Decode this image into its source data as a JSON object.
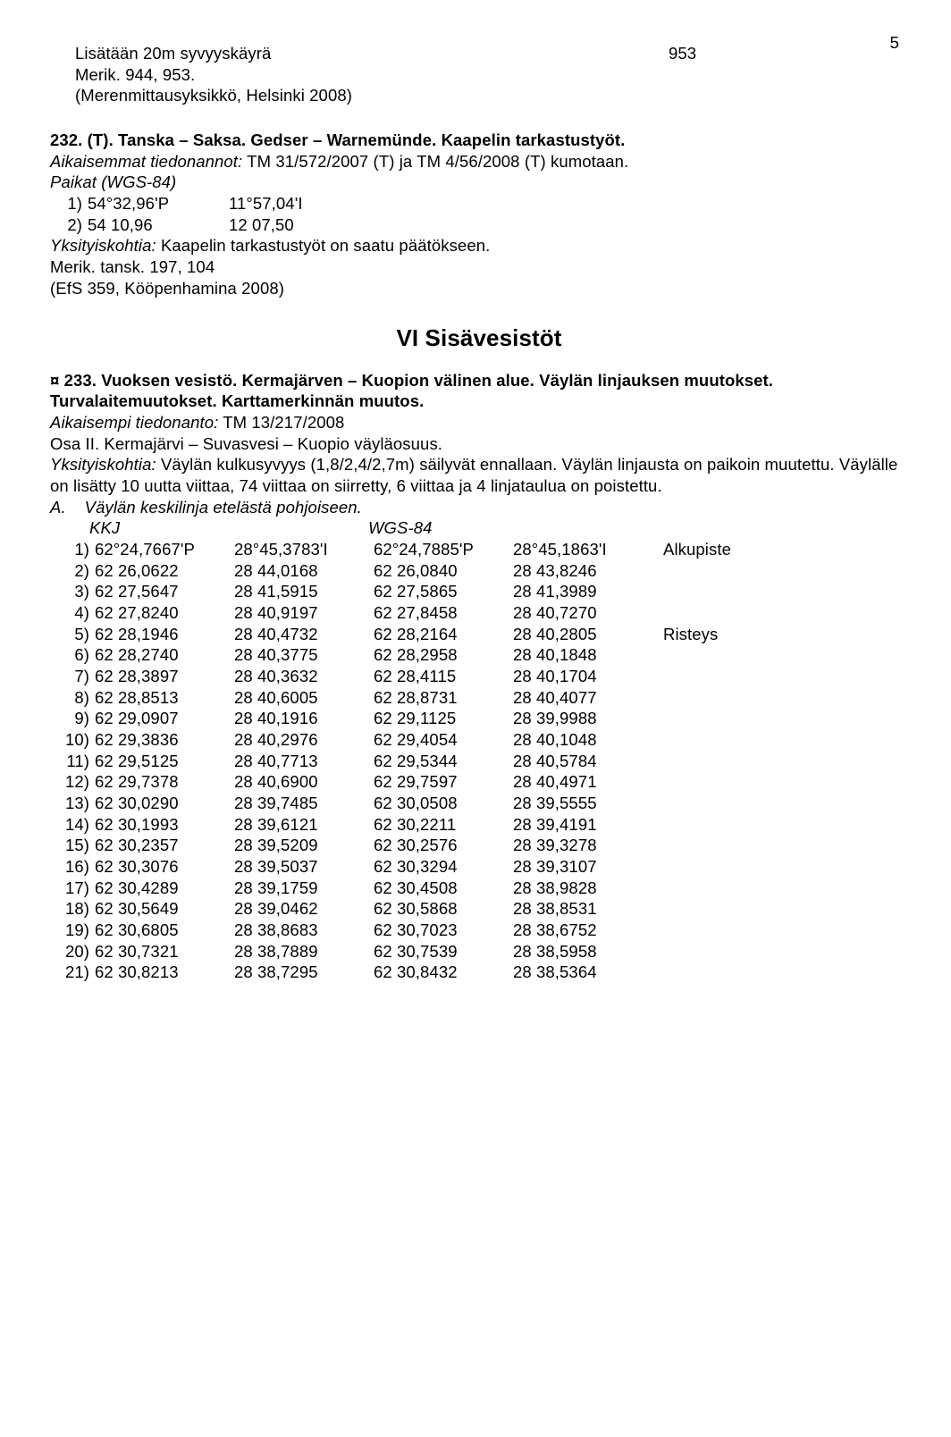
{
  "page_number": "5",
  "block1": {
    "line1_left": "Lisätään 20m syvyyskäyrä",
    "line1_right": "953",
    "line2": "Merik. 944, 953.",
    "line3": "(Merenmittausyksikkö, Helsinki 2008)"
  },
  "block2": {
    "heading": "232. (T). Tanska – Saksa. Gedser – Warnemünde. Kaapelin tarkastustyöt.",
    "prev_label": "Aikaisemmat tiedonannot:",
    "prev_text": " TM 31/572/2007 (T) ja TM 4/56/2008 (T) kumotaan.",
    "paikat_label": "Paikat (WGS-84)",
    "r1_n": "1)",
    "r1_a": "54°32,96'P",
    "r1_b": "11°57,04'I",
    "r2_n": "2)",
    "r2_a": "54 10,96",
    "r2_b": "12 07,50",
    "yk_label": "Yksityiskohtia:",
    "yk_text": " Kaapelin tarkastustyöt on saatu päätökseen.",
    "merik": "Merik. tansk. 197, 104",
    "src": "(EfS 359, Kööpenhamina 2008)"
  },
  "section_title": "VI Sisävesistöt",
  "block3": {
    "h_prefix": "¤ 233. Vuoksen vesistö. Kermajärven – Kuopion välinen alue. Väylän linjauksen muutokset. Turvalaitemuutokset. Karttamerkinnän muutos.",
    "prev_label": "Aikaisempi tiedonanto:",
    "prev_text": " TM 13/217/2008",
    "osa": "Osa II. Kermajärvi – Suvasvesi – Kuopio väyläosuus.",
    "yk_label": "Yksityiskohtia:",
    "yk_text": " Väylän kulkusyvyys (1,8/2,4/2,7m) säilyvät ennallaan. Väylän linjausta on paikoin muutettu. Väylälle on lisätty 10 uutta viittaa, 74 viittaa on siirretty, 6 viittaa ja 4 linjataulua on poistettu.",
    "a_line": "A.    Väylän keskilinja etelästä pohjoiseen.",
    "kkj": "KKJ",
    "wgs": "WGS-84",
    "rows": [
      {
        "n": "1)",
        "a": "62°24,7667'P",
        "b": "28°45,3783'I",
        "c": "62°24,7885'P",
        "d": "28°45,1863'I",
        "e": "Alkupiste"
      },
      {
        "n": "2)",
        "a": "62 26,0622",
        "b": "28 44,0168",
        "c": "62 26,0840",
        "d": "28 43,8246",
        "e": ""
      },
      {
        "n": "3)",
        "a": "62 27,5647",
        "b": "28 41,5915",
        "c": "62 27,5865",
        "d": "28 41,3989",
        "e": ""
      },
      {
        "n": "4)",
        "a": "62 27,8240",
        "b": "28 40,9197",
        "c": "62 27,8458",
        "d": "28 40,7270",
        "e": ""
      },
      {
        "n": "5)",
        "a": "62 28,1946",
        "b": "28 40,4732",
        "c": "62 28,2164",
        "d": "28 40,2805",
        "e": "Risteys"
      },
      {
        "n": "6)",
        "a": "62 28,2740",
        "b": "28 40,3775",
        "c": "62 28,2958",
        "d": "28 40,1848",
        "e": ""
      },
      {
        "n": "7)",
        "a": "62 28,3897",
        "b": "28 40,3632",
        "c": "62 28,4115",
        "d": "28 40,1704",
        "e": ""
      },
      {
        "n": "8)",
        "a": "62 28,8513",
        "b": "28 40,6005",
        "c": "62 28,8731",
        "d": "28 40,4077",
        "e": ""
      },
      {
        "n": "9)",
        "a": "62 29,0907",
        "b": "28 40,1916",
        "c": "62 29,1125",
        "d": "28 39,9988",
        "e": ""
      },
      {
        "n": "10)",
        "a": "62 29,3836",
        "b": "28 40,2976",
        "c": "62 29,4054",
        "d": "28 40,1048",
        "e": ""
      },
      {
        "n": "11)",
        "a": "62 29,5125",
        "b": "28 40,7713",
        "c": "62 29,5344",
        "d": "28 40,5784",
        "e": ""
      },
      {
        "n": "12)",
        "a": "62 29,7378",
        "b": "28 40,6900",
        "c": "62 29,7597",
        "d": "28 40,4971",
        "e": ""
      },
      {
        "n": "13)",
        "a": "62 30,0290",
        "b": "28 39,7485",
        "c": "62 30,0508",
        "d": "28 39,5555",
        "e": ""
      },
      {
        "n": "14)",
        "a": "62 30,1993",
        "b": "28 39,6121",
        "c": "62 30,2211",
        "d": "28 39,4191",
        "e": ""
      },
      {
        "n": "15)",
        "a": "62 30,2357",
        "b": "28 39,5209",
        "c": "62 30,2576",
        "d": "28 39,3278",
        "e": ""
      },
      {
        "n": "16)",
        "a": "62 30,3076",
        "b": "28 39,5037",
        "c": "62 30,3294",
        "d": "28 39,3107",
        "e": ""
      },
      {
        "n": "17)",
        "a": "62 30,4289",
        "b": "28 39,1759",
        "c": "62 30,4508",
        "d": "28 38,9828",
        "e": ""
      },
      {
        "n": "18)",
        "a": "62 30,5649",
        "b": "28 39,0462",
        "c": "62 30,5868",
        "d": "28 38,8531",
        "e": ""
      },
      {
        "n": "19)",
        "a": "62 30,6805",
        "b": "28 38,8683",
        "c": "62 30,7023",
        "d": "28 38,6752",
        "e": ""
      },
      {
        "n": "20)",
        "a": "62 30,7321",
        "b": "28 38,7889",
        "c": "62 30,7539",
        "d": "28 38,5958",
        "e": ""
      },
      {
        "n": "21)",
        "a": "62 30,8213",
        "b": "28 38,7295",
        "c": "62 30,8432",
        "d": "28 38,5364",
        "e": ""
      }
    ]
  }
}
